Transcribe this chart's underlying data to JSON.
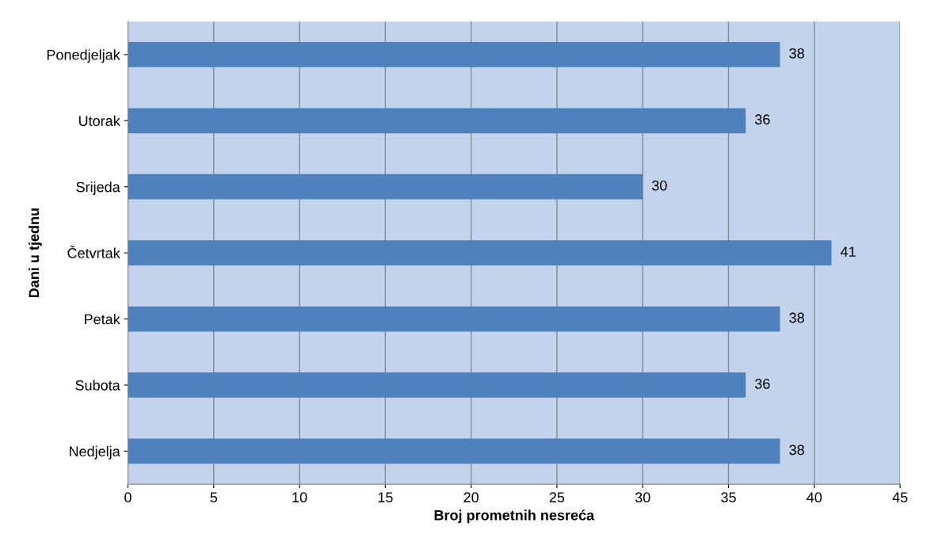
{
  "chart_data": {
    "type": "bar",
    "orientation": "horizontal",
    "xlabel": "Broj prometnih nesreća",
    "ylabel": "Dani u tjednu",
    "categories": [
      "Ponedjeljak",
      "Utorak",
      "Srijeda",
      "Četvrtak",
      "Petak",
      "Subota",
      "Nedjelja"
    ],
    "values": [
      38,
      36,
      30,
      41,
      38,
      36,
      38
    ],
    "color": "#4f81bd",
    "xlim": [
      0,
      45
    ],
    "xticks": [
      0,
      5,
      10,
      15,
      20,
      25,
      30,
      35,
      40,
      45
    ],
    "grid": "x",
    "data_labels": true
  }
}
